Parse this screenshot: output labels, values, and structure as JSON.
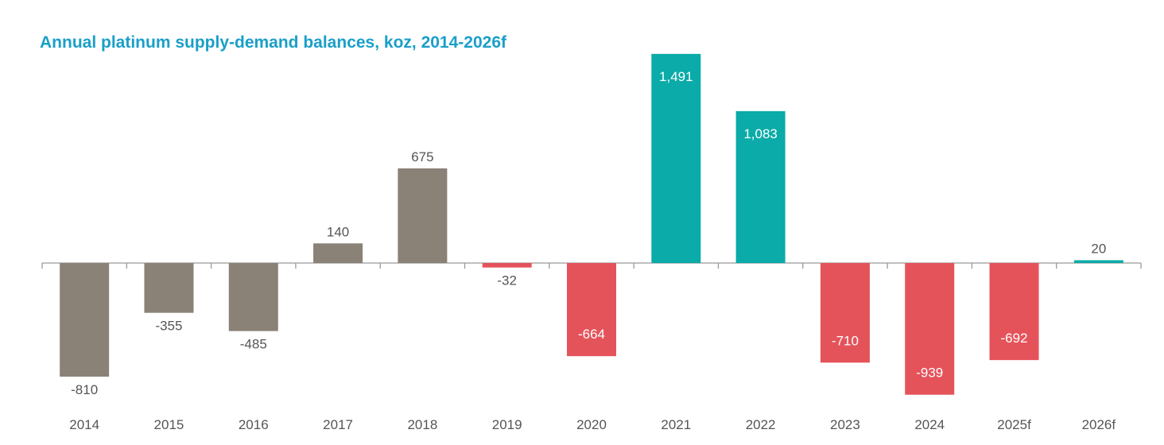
{
  "chart_data": {
    "type": "bar",
    "title": "Annual platinum supply-demand balances, koz, 2014-2026f",
    "xlabel": "",
    "ylabel": "",
    "categories": [
      "2014",
      "2015",
      "2016",
      "2017",
      "2018",
      "2019",
      "2020",
      "2021",
      "2022",
      "2023",
      "2024",
      "2025f",
      "2026f"
    ],
    "values": [
      -810,
      -355,
      -485,
      140,
      675,
      -32,
      -664,
      1491,
      1083,
      -710,
      -939,
      -692,
      20
    ],
    "value_labels": [
      "-810",
      "-355",
      "-485",
      "140",
      "675",
      "-32",
      "-664",
      "1,491",
      "1,083",
      "-710",
      "-939",
      "-692",
      "20"
    ],
    "bar_colors": [
      "#8a8177",
      "#8a8177",
      "#8a8177",
      "#8a8177",
      "#8a8177",
      "#e5535a",
      "#e5535a",
      "#0aaba8",
      "#0aaba8",
      "#e5535a",
      "#e5535a",
      "#e5535a",
      "#0aaba8"
    ],
    "ylim": [
      -960,
      1500
    ],
    "grid": false,
    "legend": "none"
  }
}
